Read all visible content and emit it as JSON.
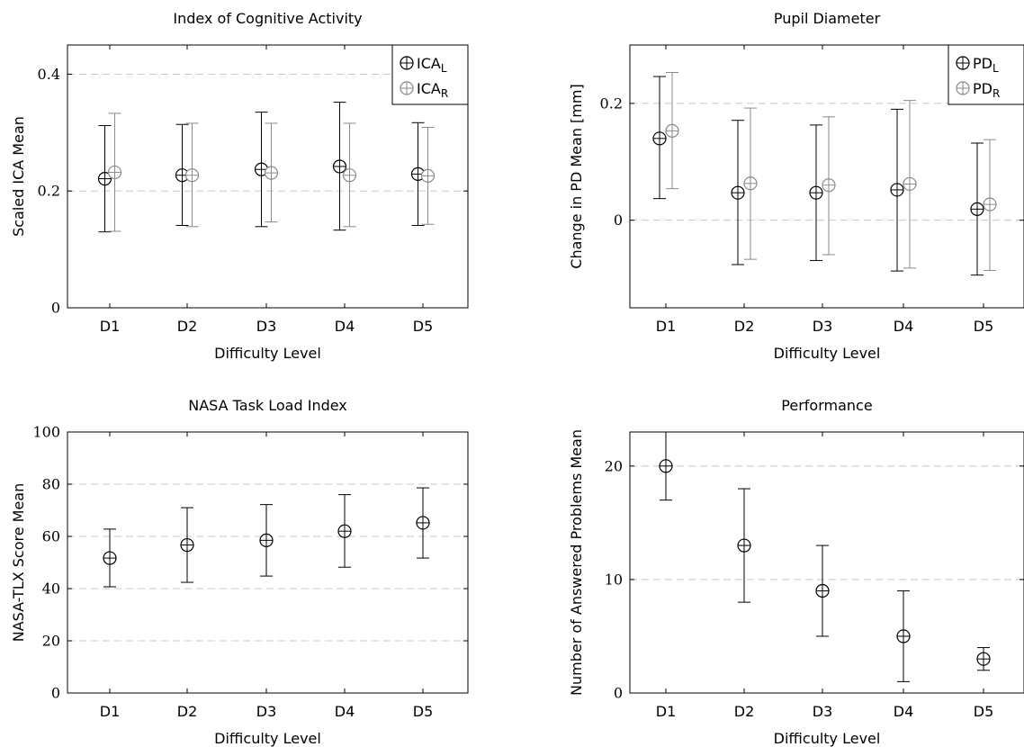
{
  "chart_data": [
    {
      "type": "scatter",
      "title": "Index of Cognitive Activity",
      "xlabel": "Difficulty Level",
      "ylabel": "Scaled ICA Mean",
      "categories": [
        "D1",
        "D2",
        "D3",
        "D4",
        "D5"
      ],
      "ylim": [
        0,
        0.45
      ],
      "yticks": [
        0,
        0.2,
        0.4
      ],
      "ytick_labels": [
        "0",
        "0.2",
        "0.4"
      ],
      "grid": true,
      "legend": "top-right",
      "series": [
        {
          "name": "ICA",
          "name_sub": "L",
          "color": "#000000",
          "values": [
            0.221,
            0.227,
            0.237,
            0.242,
            0.229
          ],
          "lower": [
            0.13,
            0.141,
            0.139,
            0.133,
            0.141
          ],
          "upper": [
            0.312,
            0.314,
            0.335,
            0.352,
            0.317
          ]
        },
        {
          "name": "ICA",
          "name_sub": "R",
          "color": "#8a8a8a",
          "values": [
            0.232,
            0.227,
            0.231,
            0.227,
            0.226
          ],
          "lower": [
            0.131,
            0.139,
            0.147,
            0.139,
            0.143
          ],
          "upper": [
            0.333,
            0.316,
            0.316,
            0.316,
            0.309
          ]
        }
      ]
    },
    {
      "type": "scatter",
      "title": "Pupil Diameter",
      "xlabel": "Difficulty Level",
      "ylabel": "Change in PD Mean [mm]",
      "categories": [
        "D1",
        "D2",
        "D3",
        "D4",
        "D5"
      ],
      "ylim": [
        -0.15,
        0.3
      ],
      "yticks": [
        0,
        0.2
      ],
      "ytick_labels": [
        "0",
        "0.2"
      ],
      "grid": true,
      "legend": "top-right",
      "series": [
        {
          "name": "PD",
          "name_sub": "L",
          "color": "#000000",
          "values": [
            0.14,
            0.047,
            0.047,
            0.052,
            0.019
          ],
          "lower": [
            0.037,
            -0.076,
            -0.069,
            -0.087,
            -0.094
          ],
          "upper": [
            0.246,
            0.171,
            0.163,
            0.19,
            0.132
          ]
        },
        {
          "name": "PD",
          "name_sub": "R",
          "color": "#8a8a8a",
          "values": [
            0.153,
            0.063,
            0.06,
            0.062,
            0.027
          ],
          "lower": [
            0.054,
            -0.067,
            -0.059,
            -0.082,
            -0.086
          ],
          "upper": [
            0.253,
            0.192,
            0.177,
            0.205,
            0.138
          ]
        }
      ]
    },
    {
      "type": "scatter",
      "title": "NASA Task Load Index",
      "xlabel": "Difficulty Level",
      "ylabel": "NASA-TLX Score Mean",
      "categories": [
        "D1",
        "D2",
        "D3",
        "D4",
        "D5"
      ],
      "ylim": [
        0,
        100
      ],
      "yticks": [
        0,
        20,
        40,
        60,
        80,
        100
      ],
      "ytick_labels": [
        "0",
        "20",
        "40",
        "60",
        "80",
        "100"
      ],
      "grid": true,
      "series": [
        {
          "color": "#000000",
          "values": [
            51.7,
            56.7,
            58.5,
            62.0,
            65.2
          ],
          "lower": [
            40.7,
            42.4,
            44.8,
            48.2,
            51.7
          ],
          "upper": [
            62.8,
            71.0,
            72.2,
            76.0,
            78.6
          ]
        }
      ]
    },
    {
      "type": "scatter",
      "title": "Performance",
      "xlabel": "Difficulty Level",
      "ylabel": "Number of Answered Problems Mean",
      "categories": [
        "D1",
        "D2",
        "D3",
        "D4",
        "D5"
      ],
      "ylim": [
        0,
        23
      ],
      "yticks": [
        0,
        10,
        20
      ],
      "ytick_labels": [
        "0",
        "10",
        "20"
      ],
      "grid": true,
      "series": [
        {
          "color": "#000000",
          "values": [
            20,
            13,
            9,
            5,
            3
          ],
          "lower": [
            17,
            8,
            5,
            1,
            2
          ],
          "upper": [
            23,
            18,
            13,
            9,
            4
          ]
        }
      ]
    }
  ]
}
